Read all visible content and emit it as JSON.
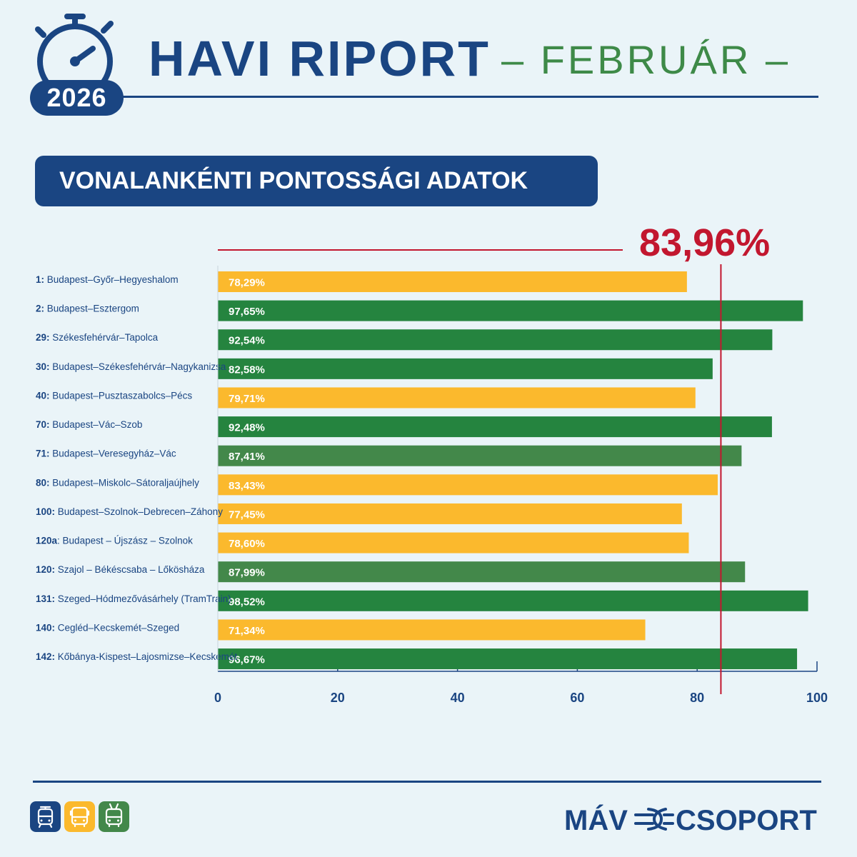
{
  "header": {
    "year": "2026",
    "title": "HAVI RIPORT",
    "subtitle": "– FEBRUÁR –",
    "section_title": "VONALANKÉNTI PONTOSSÁGI ADATOK"
  },
  "colors": {
    "primary_blue": "#1a4582",
    "green_dark": "#25843f",
    "green_light": "#43884a",
    "yellow": "#fbb92d",
    "average_red": "#c2172f",
    "background": "#eaf4f8"
  },
  "chart_data": {
    "type": "bar",
    "orientation": "horizontal",
    "xlim": [
      0,
      100
    ],
    "x_ticks": [
      "0",
      "20",
      "40",
      "60",
      "80",
      "100"
    ],
    "average": {
      "value": 83.96,
      "label": "83,96%"
    },
    "bars": [
      {
        "code": "1:",
        "route": "Budapest–Győr–Hegyeshalom",
        "value": 78.29,
        "label": "78,29%",
        "color": "yellow"
      },
      {
        "code": "2:",
        "route": "Budapest–Esztergom",
        "value": 97.65,
        "label": "97,65%",
        "color": "green_dark"
      },
      {
        "code": "29:",
        "route": "Székesfehérvár–Tapolca",
        "value": 92.54,
        "label": "92,54%",
        "color": "green_dark"
      },
      {
        "code": "30:",
        "route": "Budapest–Székesfehérvár–Nagykanizsa",
        "value": 82.58,
        "label": "82,58%",
        "color": "green_dark"
      },
      {
        "code": "40:",
        "route": "Budapest–Pusztaszabolcs–Pécs",
        "value": 79.71,
        "label": "79,71%",
        "color": "yellow"
      },
      {
        "code": "70:",
        "route": "Budapest–Vác–Szob",
        "value": 92.48,
        "label": "92,48%",
        "color": "green_dark"
      },
      {
        "code": "71:",
        "route": "Budapest–Veresegyház–Vác",
        "value": 87.41,
        "label": "87,41%",
        "color": "green_light"
      },
      {
        "code": "80:",
        "route": "Budapest–Miskolc–Sátoraljaújhely",
        "value": 83.43,
        "label": "83,43%",
        "color": "yellow"
      },
      {
        "code": "100:",
        "route": "Budapest–Szolnok–Debrecen–Záhony",
        "value": 77.45,
        "label": "77,45%",
        "color": "yellow"
      },
      {
        "code": "120a",
        "route": ": Budapest – Újszász – Szolnok",
        "value": 78.6,
        "label": "78,60%",
        "color": "yellow"
      },
      {
        "code": "120:",
        "route": "Szajol – Békéscsaba – Lőkösháza",
        "value": 87.99,
        "label": "87,99%",
        "color": "green_light"
      },
      {
        "code": "131:",
        "route": "Szeged–Hódmezővásárhely (TramTrain)",
        "value": 98.52,
        "label": "98,52%",
        "color": "green_dark"
      },
      {
        "code": "140:",
        "route": "Cegléd–Kecskemét–Szeged",
        "value": 71.34,
        "label": "71,34%",
        "color": "yellow"
      },
      {
        "code": "142:",
        "route": "Kőbánya-Kispest–Lajosmizse–Kecskemét",
        "value": 96.67,
        "label": "96,67%",
        "color": "green_dark"
      }
    ]
  },
  "footer": {
    "mode_icons": [
      {
        "name": "tram-icon",
        "color": "#1a4582"
      },
      {
        "name": "bus-icon",
        "color": "#fbb92d"
      },
      {
        "name": "trolleybus-icon",
        "color": "#43884a"
      }
    ],
    "brand_left": "MÁV",
    "brand_right": "CSOPORT"
  }
}
